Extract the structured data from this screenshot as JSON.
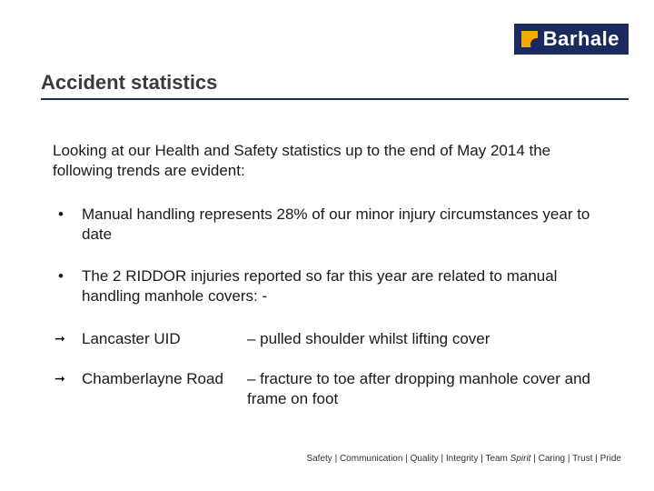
{
  "brand": {
    "name": "Barhale",
    "bg_color": "#1a2a5c",
    "accent_color": "#f2a900",
    "text_color": "#ffffff"
  },
  "title": "Accident statistics",
  "intro": "Looking at our Health and Safety statistics up to the end of May 2014 the following trends are evident:",
  "bullets": [
    "Manual handling represents 28% of our minor injury circumstances year to date",
    "The 2 RIDDOR injuries reported so far this year are related to manual handling manhole covers: -"
  ],
  "arrow_items": [
    {
      "label": "Lancaster UID",
      "desc": "– pulled shoulder whilst lifting cover"
    },
    {
      "label": "Chamberlayne Road",
      "desc": "– fracture to toe after dropping manhole cover and frame on foot"
    }
  ],
  "footer": {
    "values": [
      "Safety",
      "Communication",
      "Quality",
      "Integrity"
    ],
    "team_prefix": "Team",
    "team_spirit": " Spirit",
    "values2": [
      "Caring",
      "Trust",
      "Pride"
    ],
    "sep": " | "
  }
}
